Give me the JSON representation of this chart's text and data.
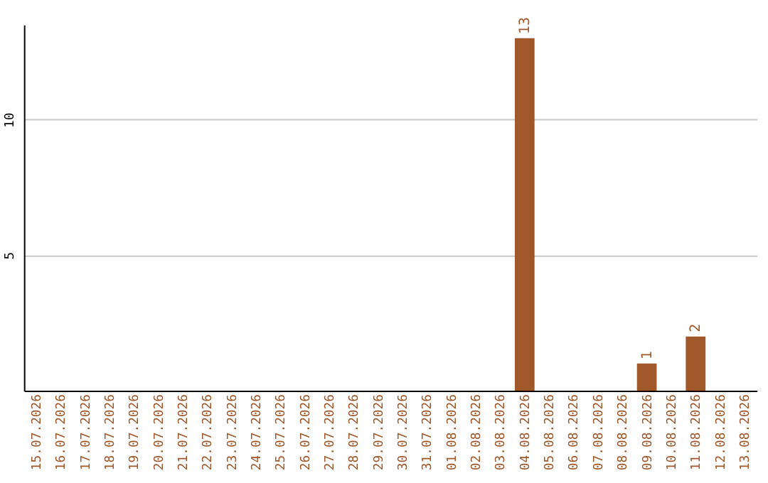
{
  "chart_data": {
    "type": "bar",
    "categories": [
      "15.07.2026",
      "16.07.2026",
      "17.07.2026",
      "18.07.2026",
      "19.07.2026",
      "20.07.2026",
      "21.07.2026",
      "22.07.2026",
      "23.07.2026",
      "24.07.2026",
      "25.07.2026",
      "26.07.2026",
      "27.07.2026",
      "28.07.2026",
      "29.07.2026",
      "30.07.2026",
      "31.07.2026",
      "01.08.2026",
      "02.08.2026",
      "03.08.2026",
      "04.08.2026",
      "05.08.2026",
      "06.08.2026",
      "07.08.2026",
      "08.08.2026",
      "09.08.2026",
      "10.08.2026",
      "11.08.2026",
      "12.08.2026",
      "13.08.2026"
    ],
    "values": [
      0,
      0,
      0,
      0,
      0,
      0,
      0,
      0,
      0,
      0,
      0,
      0,
      0,
      0,
      0,
      0,
      0,
      0,
      0,
      0,
      13,
      0,
      0,
      0,
      0,
      1,
      0,
      2,
      0,
      0
    ],
    "value_labels": [
      null,
      null,
      null,
      null,
      null,
      null,
      null,
      null,
      null,
      null,
      null,
      null,
      null,
      null,
      null,
      null,
      null,
      null,
      null,
      null,
      "13",
      null,
      null,
      null,
      null,
      "1",
      null,
      "2",
      null,
      null
    ],
    "color": "#a0572a",
    "ylim": [
      0,
      13.5
    ],
    "yticks": [
      5,
      10
    ],
    "grid": "y"
  }
}
